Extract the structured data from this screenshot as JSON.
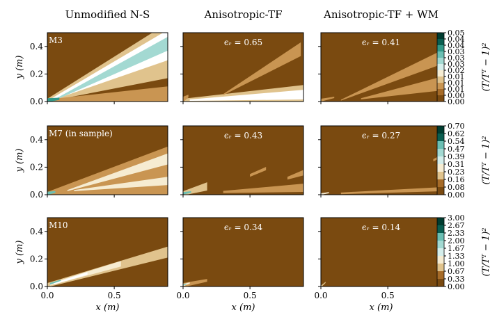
{
  "chart_data": {
    "type": "heatmap",
    "column_titles": [
      "Unmodified N-S",
      "Anisotropic-TF",
      "Anisotropic-TF + WM"
    ],
    "xlabel": "x (m)",
    "ylabel": "y (m)",
    "xlim": [
      0.0,
      0.9
    ],
    "ylim": [
      0.0,
      0.5
    ],
    "x_ticks": [
      "0.0",
      "0.5"
    ],
    "y_ticks": [
      "0.0",
      "0.2",
      "0.4"
    ],
    "colorbar_label": "(T/T_T − 1)²",
    "colorbar_label_display": "(T/Tᵀ − 1)²",
    "colors": {
      "base": "#7a4a10",
      "palette": [
        "#7a4a10",
        "#a66b28",
        "#c99552",
        "#e0c38d",
        "#f6ecd2",
        "#ffffff",
        "#d5eeeb",
        "#a3d9d2",
        "#6bbfb3",
        "#339988",
        "#0a5e50",
        "#003c30"
      ]
    },
    "rows": [
      {
        "case_label": "M3",
        "colorbar_ticks": [
          "0.05",
          "0.04",
          "0.04",
          "0.03",
          "0.03",
          "0.03",
          "0.02",
          "0.01",
          "0.01",
          "0.01",
          "0.00",
          "0.00"
        ],
        "panels": [
          {
            "annotation": "",
            "bands": [
              {
                "x0": 0.0,
                "y0": 0.01,
                "x1": 0.9,
                "y1": 0.37,
                "w0": 0.01,
                "w1": 0.2,
                "level": 3
              },
              {
                "x0": 0.02,
                "y0": 0.01,
                "x1": 0.9,
                "y1": 0.41,
                "w0": 0.006,
                "w1": 0.11,
                "level": 5
              },
              {
                "x0": 0.05,
                "y0": 0.01,
                "x1": 0.9,
                "y1": 0.42,
                "w0": 0.004,
                "w1": 0.05,
                "level": 7
              },
              {
                "x0": 0.0,
                "y0": 0.005,
                "x1": 0.9,
                "y1": 0.05,
                "w0": 0.01,
                "w1": 0.06,
                "level": 2
              },
              {
                "x0": 0.0,
                "y0": 0.01,
                "x1": 0.09,
                "y1": 0.02,
                "w0": 0.014,
                "w1": 0.008,
                "level": 9
              }
            ]
          },
          {
            "annotation": "ϵ_r = 0.65",
            "annotation_display": "ϵᵣ = 0.65",
            "bands": [
              {
                "x0": 0.0,
                "y0": 0.01,
                "x1": 0.9,
                "y1": 0.06,
                "w0": 0.01,
                "w1": 0.06,
                "level": 3
              },
              {
                "x0": 0.05,
                "y0": 0.01,
                "x1": 0.9,
                "y1": 0.05,
                "w0": 0.005,
                "w1": 0.035,
                "level": 5
              },
              {
                "x0": 0.3,
                "y0": 0.05,
                "x1": 0.88,
                "y1": 0.38,
                "w0": 0.004,
                "w1": 0.05,
                "level": 2
              },
              {
                "x0": 0.0,
                "y0": 0.015,
                "x1": 0.04,
                "y1": 0.04,
                "w0": 0.02,
                "w1": 0.01,
                "level": 2
              }
            ]
          },
          {
            "annotation": "ϵ_r = 0.41",
            "annotation_display": "ϵᵣ = 0.41",
            "bands": [
              {
                "x0": 0.15,
                "y0": 0.01,
                "x1": 0.9,
                "y1": 0.32,
                "w0": 0.003,
                "w1": 0.05,
                "level": 2
              },
              {
                "x0": 0.3,
                "y0": 0.02,
                "x1": 0.9,
                "y1": 0.13,
                "w0": 0.004,
                "w1": 0.05,
                "level": 2
              },
              {
                "x0": 0.0,
                "y0": 0.01,
                "x1": 0.1,
                "y1": 0.03,
                "w0": 0.01,
                "w1": 0.005,
                "level": 2
              }
            ]
          }
        ]
      },
      {
        "case_label": "M7 (in sample)",
        "colorbar_ticks": [
          "0.70",
          "0.62",
          "0.54",
          "0.47",
          "0.39",
          "0.31",
          "0.23",
          "0.16",
          "0.08",
          "0.00"
        ],
        "panels": [
          {
            "annotation": "",
            "bands": [
              {
                "x0": 0.0,
                "y0": 0.01,
                "x1": 0.9,
                "y1": 0.27,
                "w0": 0.01,
                "w1": 0.08,
                "level": 2
              },
              {
                "x0": 0.0,
                "y0": 0.01,
                "x1": 0.9,
                "y1": 0.15,
                "w0": 0.01,
                "w1": 0.1,
                "level": 2
              },
              {
                "x0": 0.15,
                "y0": 0.03,
                "x1": 0.9,
                "y1": 0.26,
                "w0": 0.004,
                "w1": 0.04,
                "level": 4
              },
              {
                "x0": 0.2,
                "y0": 0.03,
                "x1": 0.9,
                "y1": 0.1,
                "w0": 0.004,
                "w1": 0.03,
                "level": 4
              },
              {
                "x0": 0.0,
                "y0": 0.005,
                "x1": 0.9,
                "y1": 0.03,
                "w0": 0.01,
                "w1": 0.03,
                "level": 2
              },
              {
                "x0": 0.0,
                "y0": 0.01,
                "x1": 0.06,
                "y1": 0.02,
                "w0": 0.012,
                "w1": 0.006,
                "level": 8
              }
            ]
          },
          {
            "annotation": "ϵ_r = 0.43",
            "annotation_display": "ϵᵣ = 0.43",
            "bands": [
              {
                "x0": 0.0,
                "y0": 0.01,
                "x1": 0.18,
                "y1": 0.06,
                "w0": 0.015,
                "w1": 0.03,
                "level": 3
              },
              {
                "x0": 0.0,
                "y0": 0.01,
                "x1": 0.06,
                "y1": 0.02,
                "w0": 0.008,
                "w1": 0.006,
                "level": 8
              },
              {
                "x0": 0.5,
                "y0": 0.14,
                "x1": 0.62,
                "y1": 0.19,
                "w0": 0.01,
                "w1": 0.012,
                "level": 2
              },
              {
                "x0": 0.3,
                "y0": 0.02,
                "x1": 0.9,
                "y1": 0.05,
                "w0": 0.008,
                "w1": 0.03,
                "level": 2
              },
              {
                "x0": 0.78,
                "y0": 0.12,
                "x1": 0.9,
                "y1": 0.16,
                "w0": 0.01,
                "w1": 0.02,
                "level": 2
              }
            ]
          },
          {
            "annotation": "ϵ_r = 0.27",
            "annotation_display": "ϵᵣ = 0.27",
            "bands": [
              {
                "x0": 0.15,
                "y0": 0.01,
                "x1": 0.9,
                "y1": 0.04,
                "w0": 0.006,
                "w1": 0.015,
                "level": 2
              },
              {
                "x0": 0.84,
                "y0": 0.25,
                "x1": 0.9,
                "y1": 0.28,
                "w0": 0.008,
                "w1": 0.01,
                "level": 2
              },
              {
                "x0": 0.0,
                "y0": 0.005,
                "x1": 0.06,
                "y1": 0.015,
                "w0": 0.006,
                "w1": 0.004,
                "level": 4
              }
            ]
          }
        ]
      },
      {
        "case_label": "M10",
        "colorbar_ticks": [
          "3.00",
          "2.67",
          "2.33",
          "2.00",
          "1.67",
          "1.33",
          "1.00",
          "0.67",
          "0.33",
          "0.00"
        ],
        "panels": [
          {
            "annotation": "",
            "bands": [
              {
                "x0": 0.0,
                "y0": 0.01,
                "x1": 0.9,
                "y1": 0.25,
                "w0": 0.015,
                "w1": 0.04,
                "level": 3
              },
              {
                "x0": 0.02,
                "y0": 0.015,
                "x1": 0.55,
                "y1": 0.165,
                "w0": 0.008,
                "w1": 0.02,
                "level": 4
              },
              {
                "x0": 0.05,
                "y0": 0.02,
                "x1": 0.3,
                "y1": 0.095,
                "w0": 0.005,
                "w1": 0.01,
                "level": 5
              },
              {
                "x0": 0.02,
                "y0": 0.02,
                "x1": 0.1,
                "y1": 0.045,
                "w0": 0.006,
                "w1": 0.004,
                "level": 8
              }
            ]
          },
          {
            "annotation": "ϵ_r = 0.34",
            "annotation_display": "ϵᵣ = 0.34",
            "bands": [
              {
                "x0": 0.0,
                "y0": 0.01,
                "x1": 0.18,
                "y1": 0.045,
                "w0": 0.015,
                "w1": 0.01,
                "level": 2
              },
              {
                "x0": 0.0,
                "y0": 0.01,
                "x1": 0.05,
                "y1": 0.025,
                "w0": 0.008,
                "w1": 0.005,
                "level": 4
              },
              {
                "x0": 0.0,
                "y0": 0.01,
                "x1": 0.025,
                "y1": 0.018,
                "w0": 0.004,
                "w1": 0.003,
                "level": 8
              }
            ]
          },
          {
            "annotation": "ϵ_r = 0.14",
            "annotation_display": "ϵᵣ = 0.14",
            "bands": [
              {
                "x0": 0.0,
                "y0": 0.0,
                "x1": 0.035,
                "y1": 0.03,
                "w0": 0.006,
                "w1": 0.004,
                "level": 3
              }
            ]
          }
        ]
      }
    ]
  }
}
